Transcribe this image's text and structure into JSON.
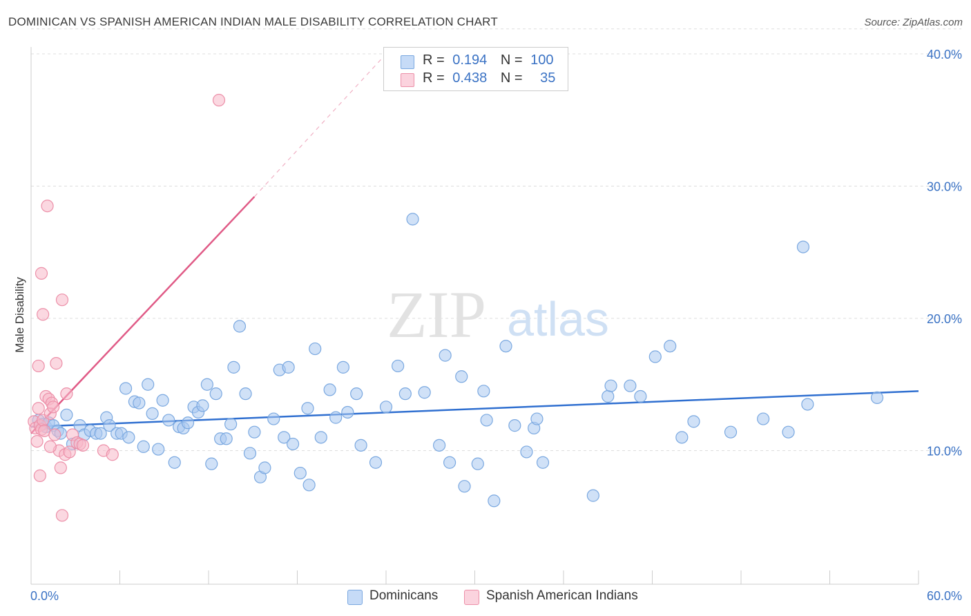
{
  "header": {
    "title": "DOMINICAN VS SPANISH AMERICAN INDIAN MALE DISABILITY CORRELATION CHART",
    "source": "Source: ZipAtlas.com"
  },
  "legend_box": {
    "rows": [
      {
        "r_label": "R =",
        "r_value": "0.194",
        "n_label": "N =",
        "n_value": "100",
        "color": "#a9c8f0"
      },
      {
        "r_label": "R =",
        "r_value": "0.438",
        "n_label": "N =",
        "n_value": "35",
        "color": "#f7b8c8"
      }
    ]
  },
  "watermark": {
    "zip": "ZIP",
    "atlas": "atlas"
  },
  "chart_data": {
    "type": "scatter",
    "title": "DOMINICAN VS SPANISH AMERICAN INDIAN MALE DISABILITY CORRELATION CHART",
    "xlabel": "",
    "ylabel": "Male Disability",
    "xlim": [
      0,
      60
    ],
    "ylim": [
      0,
      42
    ],
    "x_tick_labels": [
      "0.0%",
      "60.0%"
    ],
    "y_ticks": [
      10,
      20,
      30,
      40
    ],
    "y_tick_labels": [
      "10.0%",
      "20.0%",
      "30.0%",
      "40.0%"
    ],
    "grid": true,
    "legend_position": "bottom",
    "series": [
      {
        "name": "Dominicans",
        "color": "#a9c8f0",
        "edge": "#7aa8e0",
        "r": 0.194,
        "n": 100,
        "trend": {
          "x": [
            0,
            60
          ],
          "y": [
            11.8,
            14.5
          ],
          "color": "#2f6fd0"
        },
        "points": [
          [
            0.5,
            12.3
          ],
          [
            0.8,
            12.0
          ],
          [
            1.0,
            11.8
          ],
          [
            1.2,
            12.1
          ],
          [
            1.5,
            11.9
          ],
          [
            1.8,
            11.5
          ],
          [
            2.0,
            11.3
          ],
          [
            2.4,
            12.7
          ],
          [
            2.8,
            10.5
          ],
          [
            3.3,
            11.9
          ],
          [
            3.6,
            11.2
          ],
          [
            4.0,
            11.5
          ],
          [
            4.4,
            11.3
          ],
          [
            4.7,
            11.3
          ],
          [
            5.1,
            12.5
          ],
          [
            5.3,
            11.9
          ],
          [
            5.8,
            11.3
          ],
          [
            6.1,
            11.3
          ],
          [
            6.4,
            14.7
          ],
          [
            6.6,
            11.0
          ],
          [
            7.0,
            13.7
          ],
          [
            7.3,
            13.6
          ],
          [
            7.6,
            10.3
          ],
          [
            7.9,
            15.0
          ],
          [
            8.2,
            12.8
          ],
          [
            8.6,
            10.1
          ],
          [
            8.9,
            13.8
          ],
          [
            9.3,
            12.3
          ],
          [
            9.7,
            9.1
          ],
          [
            10.0,
            11.8
          ],
          [
            10.3,
            11.7
          ],
          [
            10.6,
            12.1
          ],
          [
            11.0,
            13.3
          ],
          [
            11.3,
            12.9
          ],
          [
            11.6,
            13.4
          ],
          [
            11.9,
            15.0
          ],
          [
            12.2,
            9.0
          ],
          [
            12.5,
            14.3
          ],
          [
            12.8,
            10.9
          ],
          [
            13.2,
            10.9
          ],
          [
            13.5,
            12.0
          ],
          [
            13.7,
            16.3
          ],
          [
            14.1,
            19.4
          ],
          [
            14.5,
            14.3
          ],
          [
            14.8,
            9.8
          ],
          [
            15.1,
            11.4
          ],
          [
            15.5,
            8.0
          ],
          [
            15.8,
            8.7
          ],
          [
            16.4,
            12.4
          ],
          [
            16.8,
            16.1
          ],
          [
            17.1,
            11.0
          ],
          [
            17.4,
            16.3
          ],
          [
            17.7,
            10.5
          ],
          [
            18.2,
            8.3
          ],
          [
            18.7,
            13.2
          ],
          [
            18.8,
            7.4
          ],
          [
            19.2,
            17.7
          ],
          [
            19.6,
            11.0
          ],
          [
            20.2,
            14.6
          ],
          [
            20.6,
            12.5
          ],
          [
            21.1,
            16.3
          ],
          [
            21.4,
            12.9
          ],
          [
            22.0,
            14.3
          ],
          [
            22.3,
            10.4
          ],
          [
            23.3,
            9.1
          ],
          [
            24.0,
            13.3
          ],
          [
            24.8,
            16.4
          ],
          [
            25.3,
            14.3
          ],
          [
            25.8,
            27.5
          ],
          [
            26.6,
            14.4
          ],
          [
            27.6,
            10.4
          ],
          [
            28.0,
            17.2
          ],
          [
            28.3,
            9.1
          ],
          [
            29.1,
            15.6
          ],
          [
            29.3,
            7.3
          ],
          [
            30.2,
            9.0
          ],
          [
            30.6,
            14.5
          ],
          [
            30.8,
            12.3
          ],
          [
            31.3,
            6.2
          ],
          [
            32.1,
            17.9
          ],
          [
            32.7,
            11.9
          ],
          [
            33.5,
            9.9
          ],
          [
            34.0,
            11.7
          ],
          [
            34.2,
            12.4
          ],
          [
            34.6,
            9.1
          ],
          [
            38.0,
            6.6
          ],
          [
            39.0,
            14.1
          ],
          [
            39.2,
            14.9
          ],
          [
            40.5,
            14.9
          ],
          [
            41.2,
            14.1
          ],
          [
            42.2,
            17.1
          ],
          [
            43.2,
            17.9
          ],
          [
            44.0,
            11.0
          ],
          [
            44.8,
            12.2
          ],
          [
            47.3,
            11.4
          ],
          [
            49.5,
            12.4
          ],
          [
            51.2,
            11.4
          ],
          [
            52.2,
            25.4
          ],
          [
            52.5,
            13.5
          ],
          [
            57.2,
            14.0
          ]
        ]
      },
      {
        "name": "Spanish American Indians",
        "color": "#f7b8c8",
        "edge": "#ec8fa8",
        "r": 0.438,
        "n": 35,
        "trend": {
          "x": [
            0,
            15.1
          ],
          "y": [
            11.3,
            29.2
          ],
          "dashed_to": [
            24.5,
            40.6
          ],
          "color": "#e05a86"
        },
        "points": [
          [
            0.2,
            12.2
          ],
          [
            0.3,
            11.7
          ],
          [
            0.4,
            10.7
          ],
          [
            0.5,
            13.2
          ],
          [
            0.6,
            11.9
          ],
          [
            0.7,
            11.6
          ],
          [
            0.8,
            12.3
          ],
          [
            0.9,
            11.5
          ],
          [
            0.5,
            16.4
          ],
          [
            0.6,
            8.1
          ],
          [
            0.7,
            23.4
          ],
          [
            0.8,
            20.3
          ],
          [
            1.0,
            14.1
          ],
          [
            1.2,
            13.9
          ],
          [
            1.3,
            12.8
          ],
          [
            1.1,
            28.5
          ],
          [
            1.4,
            13.6
          ],
          [
            1.5,
            13.3
          ],
          [
            1.6,
            11.2
          ],
          [
            1.7,
            16.6
          ],
          [
            1.9,
            10.0
          ],
          [
            2.0,
            8.7
          ],
          [
            2.1,
            21.4
          ],
          [
            2.1,
            5.1
          ],
          [
            2.3,
            9.7
          ],
          [
            2.4,
            14.3
          ],
          [
            2.6,
            9.9
          ],
          [
            2.8,
            11.2
          ],
          [
            3.1,
            10.6
          ],
          [
            3.3,
            10.5
          ],
          [
            3.5,
            10.4
          ],
          [
            4.9,
            10.0
          ],
          [
            5.5,
            9.7
          ],
          [
            1.3,
            10.3
          ],
          [
            12.7,
            36.5
          ]
        ]
      }
    ]
  }
}
